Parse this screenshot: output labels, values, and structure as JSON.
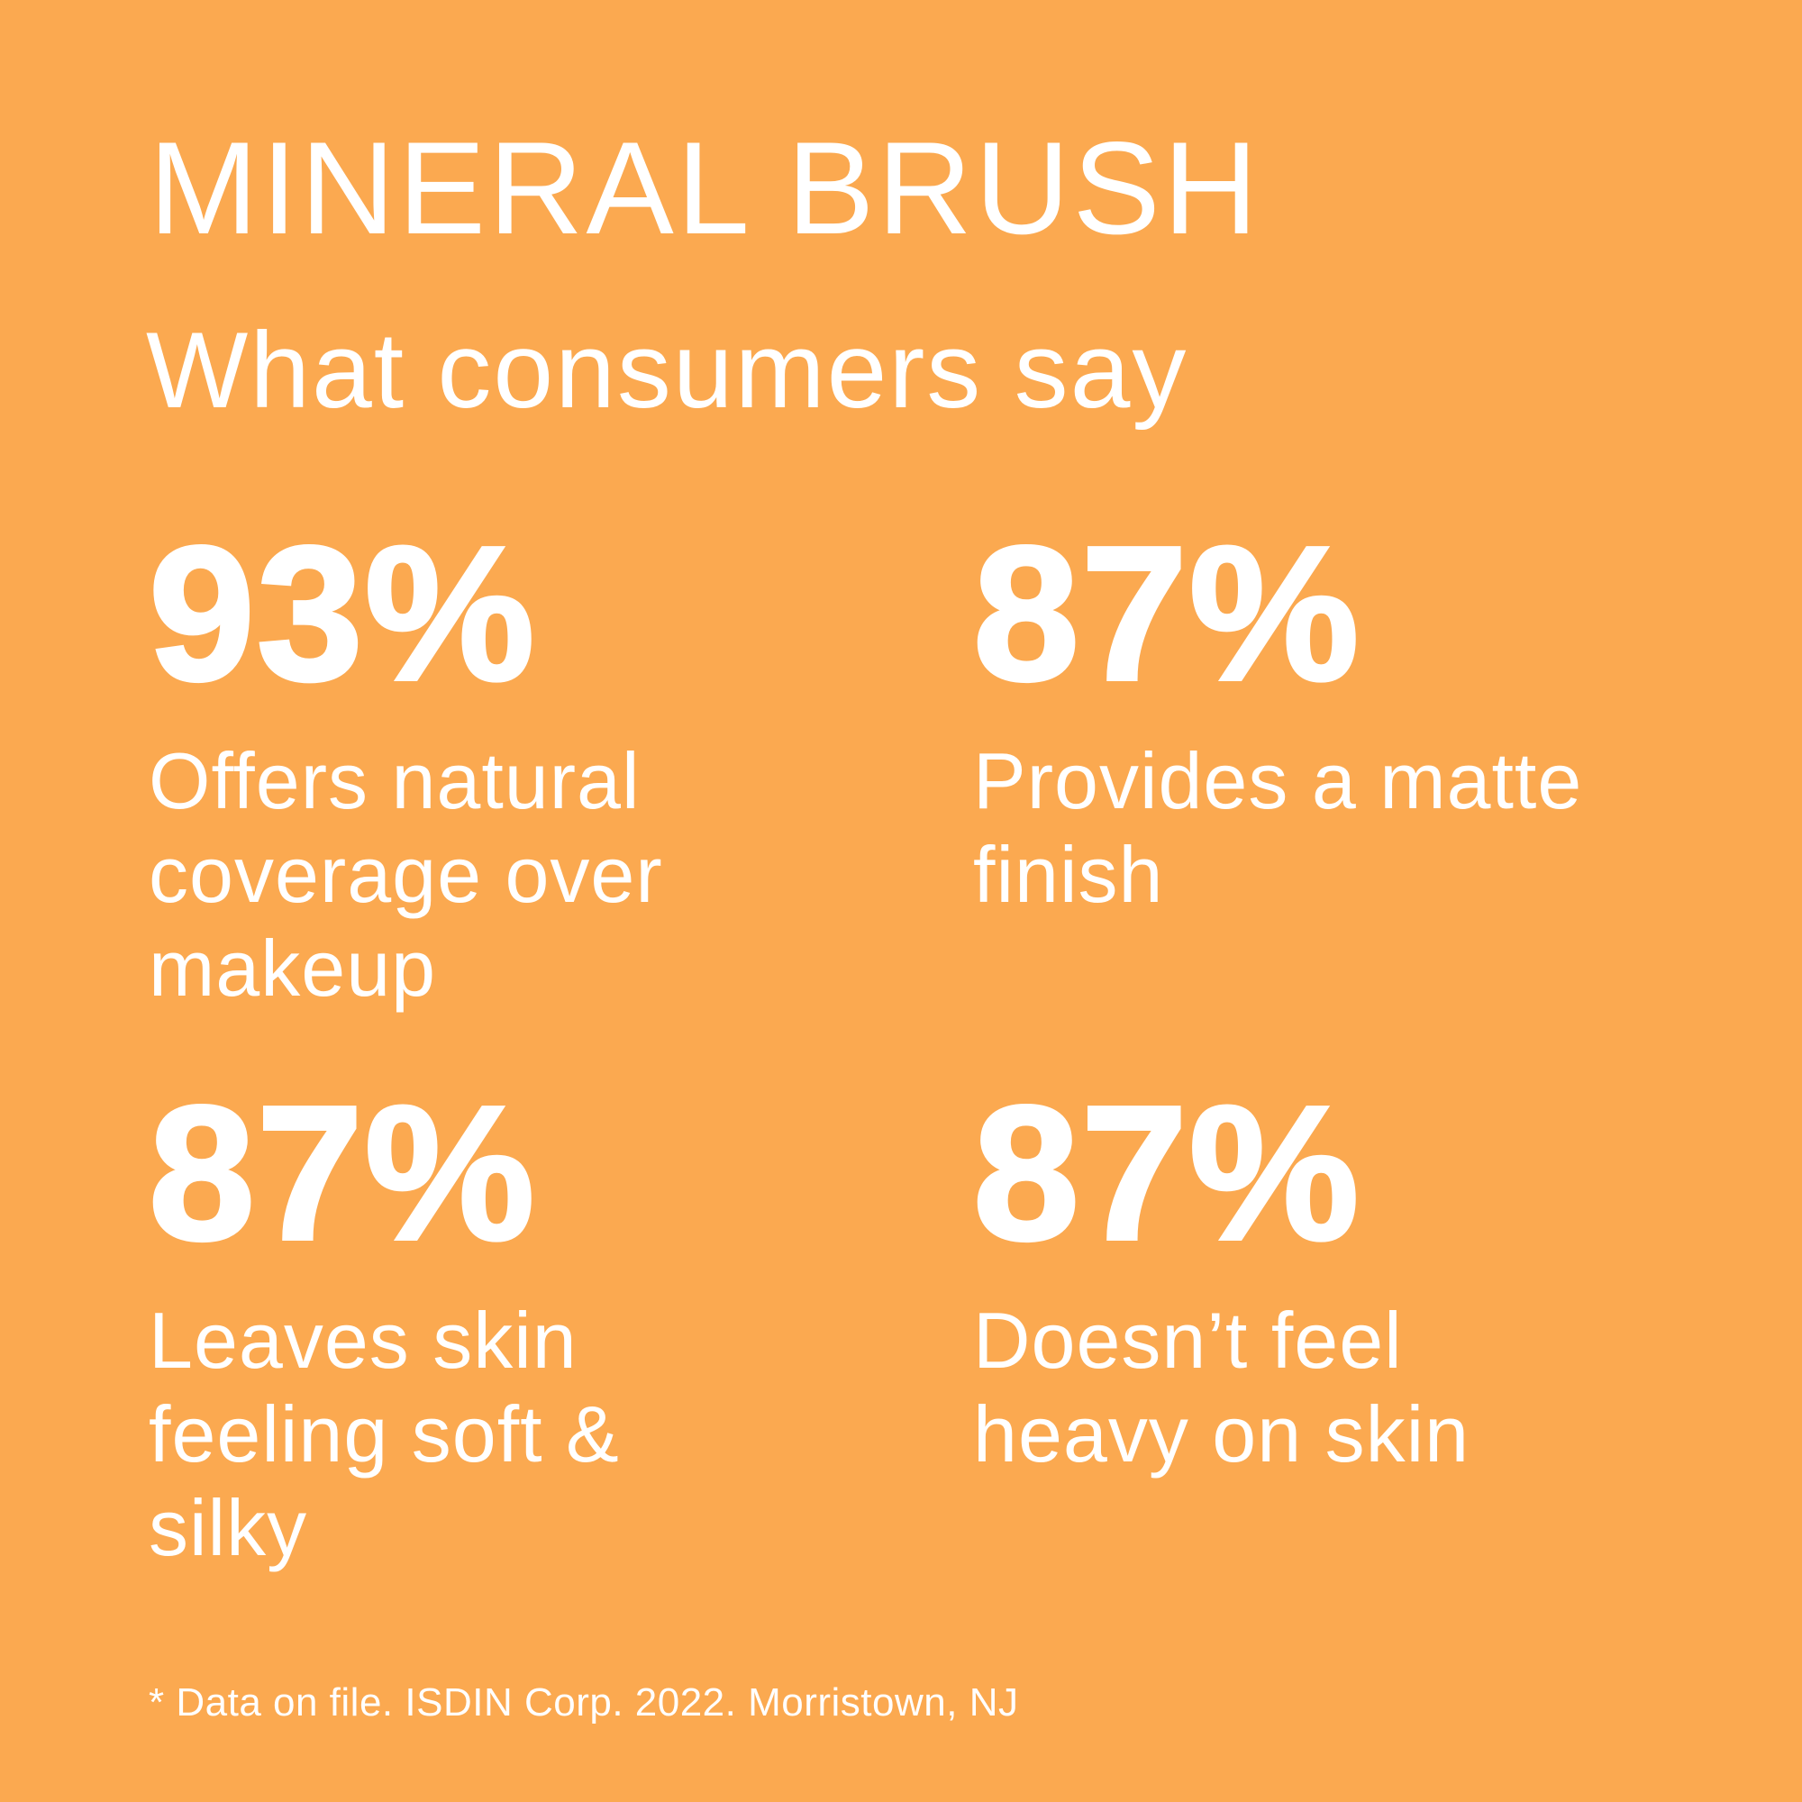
{
  "colors": {
    "background": "#FBA950",
    "text": "#FFFFFF"
  },
  "header": {
    "title": "MINERAL BRUSH",
    "subtitle": "What consumers say"
  },
  "stats": [
    {
      "value": "93%",
      "description": "Offers natural\ncoverage over\nmakeup"
    },
    {
      "value": "87%",
      "description": "Provides a matte\nfinish"
    },
    {
      "value": "87%",
      "description": "Leaves skin\nfeeling soft &\nsilky"
    },
    {
      "value": "87%",
      "description": "Doesn’t feel\nheavy on skin"
    }
  ],
  "footer": {
    "disclaimer": "* Data on file. ISDIN Corp. 2022. Morristown, NJ"
  }
}
